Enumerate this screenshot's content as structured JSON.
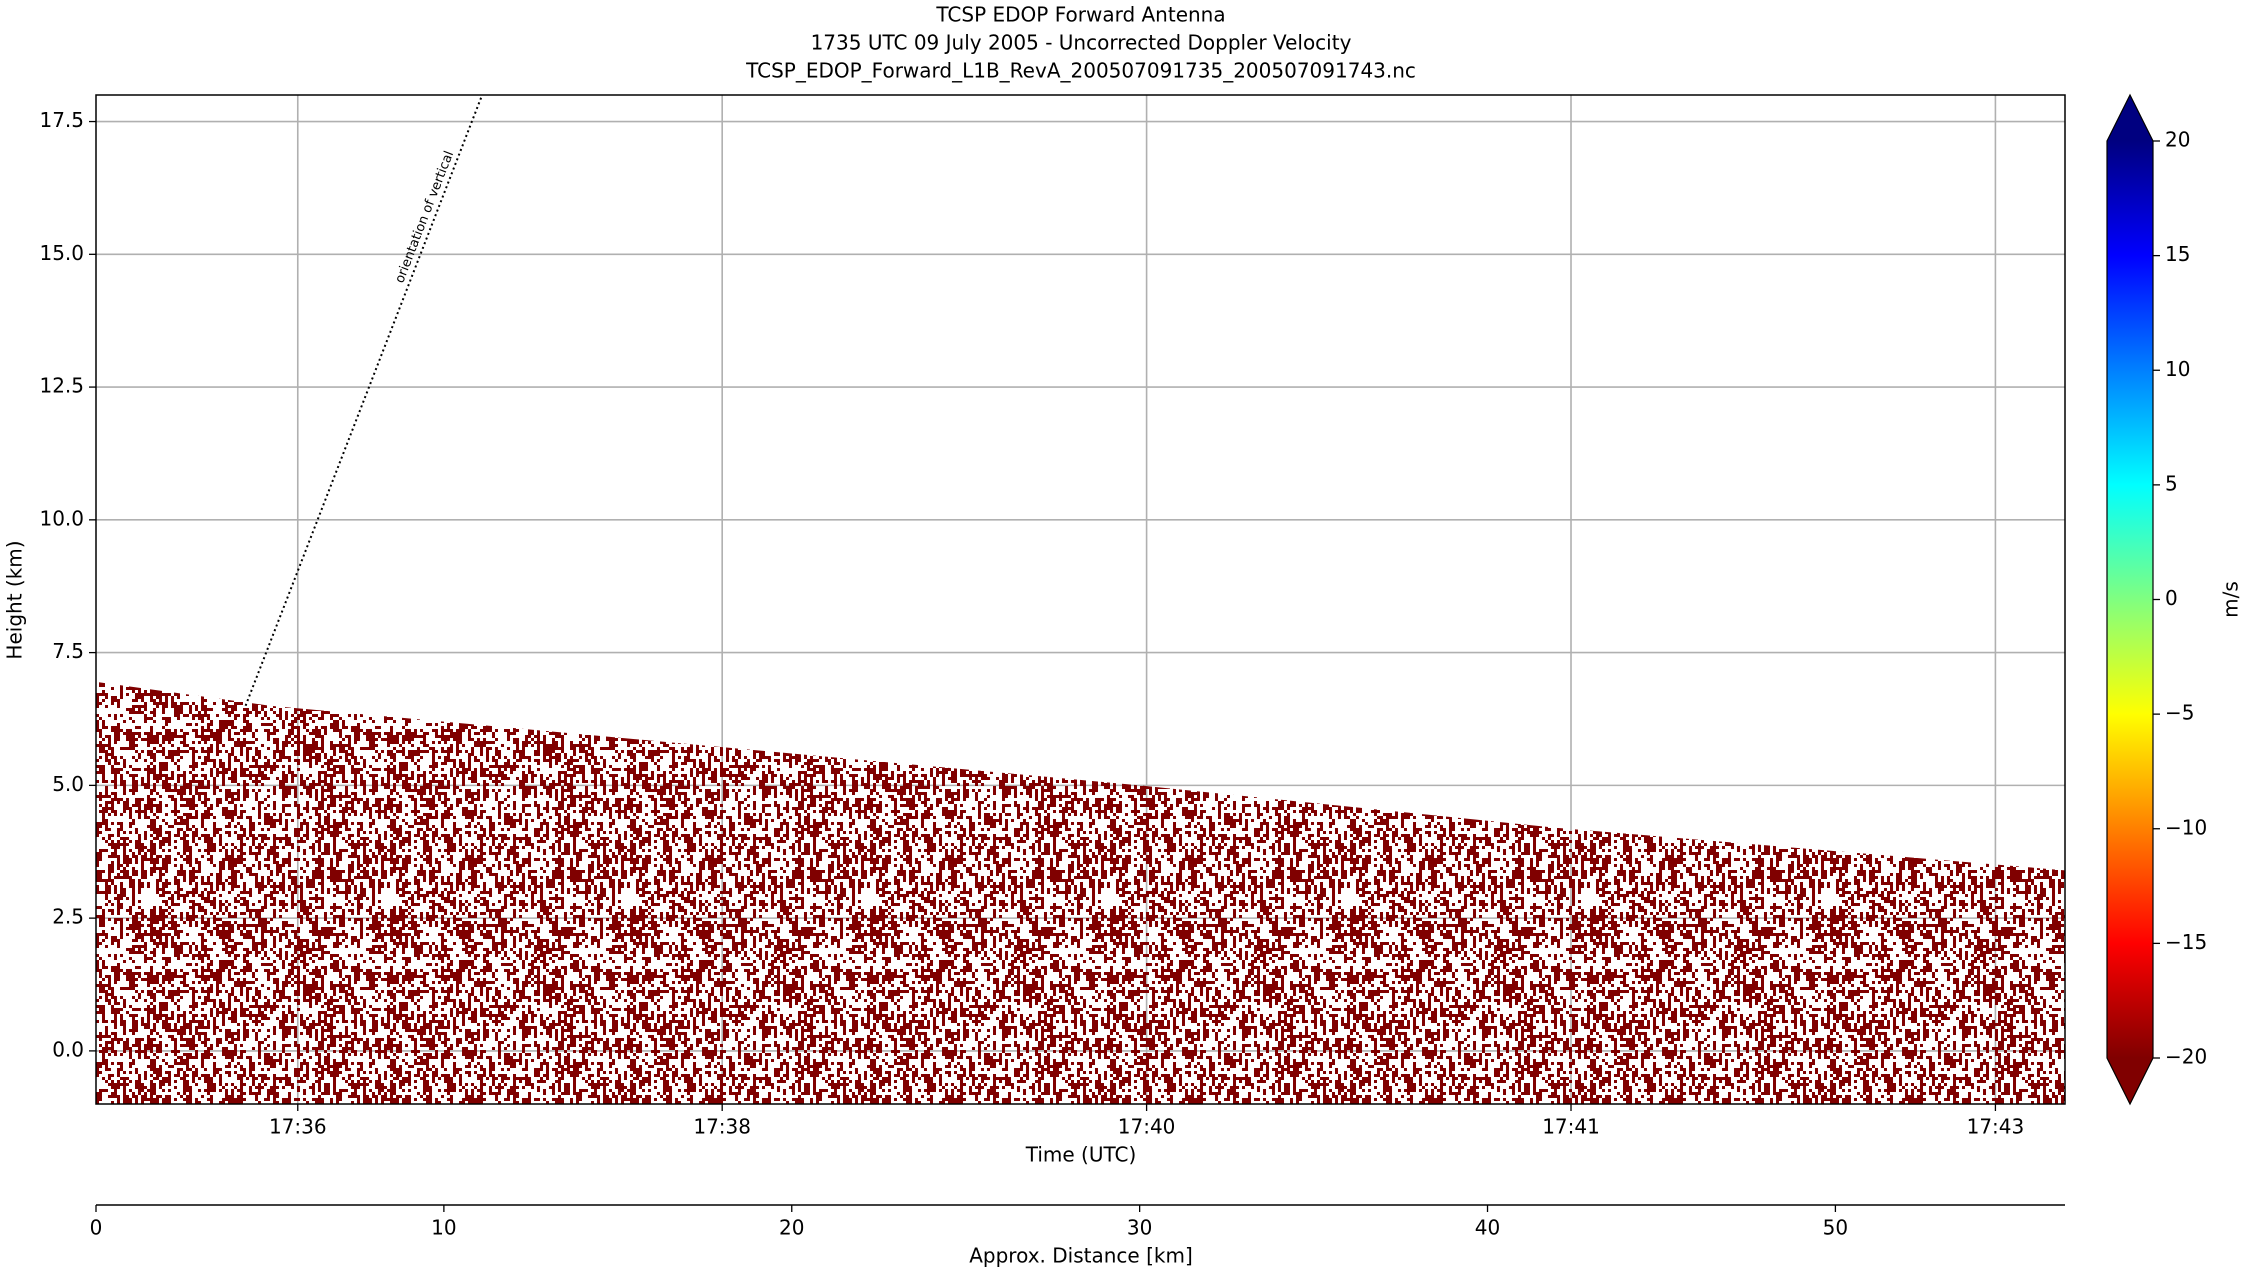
{
  "chart_data": {
    "type": "area",
    "title": [
      "TCSP EDOP Forward Antenna",
      "1735 UTC 09 July 2005 - Uncorrected Doppler Velocity",
      "TCSP_EDOP_Forward_L1B_RevA_200507091735_200507091743.nc"
    ],
    "ylabel": "Height (km)",
    "xlabel": "Time (UTC)",
    "x2label": "Approx. Distance [km]",
    "ylim": [
      -1.0,
      18.0
    ],
    "yticks": [
      {
        "value": 0,
        "label": "0.0"
      },
      {
        "value": 2.5,
        "label": "2.5"
      },
      {
        "value": 5,
        "label": "5.0"
      },
      {
        "value": 7.5,
        "label": "7.5"
      },
      {
        "value": 10,
        "label": "10.0"
      },
      {
        "value": 12.5,
        "label": "12.5"
      },
      {
        "value": 15,
        "label": "15.0"
      },
      {
        "value": 17.5,
        "label": "17.5"
      }
    ],
    "xlim": [
      0,
      56.6
    ],
    "xticks": [
      {
        "value": 5.8,
        "label": "17:36"
      },
      {
        "value": 18.0,
        "label": "17:38"
      },
      {
        "value": 30.2,
        "label": "17:40"
      },
      {
        "value": 42.4,
        "label": "17:41"
      },
      {
        "value": 54.6,
        "label": "17:43"
      }
    ],
    "x2ticks": [
      0,
      10,
      20,
      30,
      40,
      50
    ],
    "grid": true,
    "series": [
      {
        "color": "#800000",
        "x": [
          0,
          5,
          20,
          30,
          42,
          56.6
        ],
        "values": [
          6.95,
          6.5,
          5.6,
          5.0,
          4.2,
          3.4
        ]
      }
    ],
    "reference_line": {
      "label": "orientation of vertical",
      "x": [
        4.3,
        11.1
      ],
      "y": [
        6.5,
        18.0
      ]
    },
    "colorbar": {
      "label": "m/s",
      "clim": [
        -20,
        20
      ],
      "ticks": [
        {
          "value": -20,
          "label": "−20"
        },
        {
          "value": -15,
          "label": "−15"
        },
        {
          "value": -10,
          "label": "−10"
        },
        {
          "value": -5,
          "label": "−5"
        },
        0,
        5,
        10,
        15,
        20
      ],
      "colors": [
        "#800000",
        "#ff0000",
        "#ff8000",
        "#ffff00",
        "#80ff80",
        "#00ffff",
        "#0080ff",
        "#0000ff",
        "#000080"
      ]
    }
  }
}
